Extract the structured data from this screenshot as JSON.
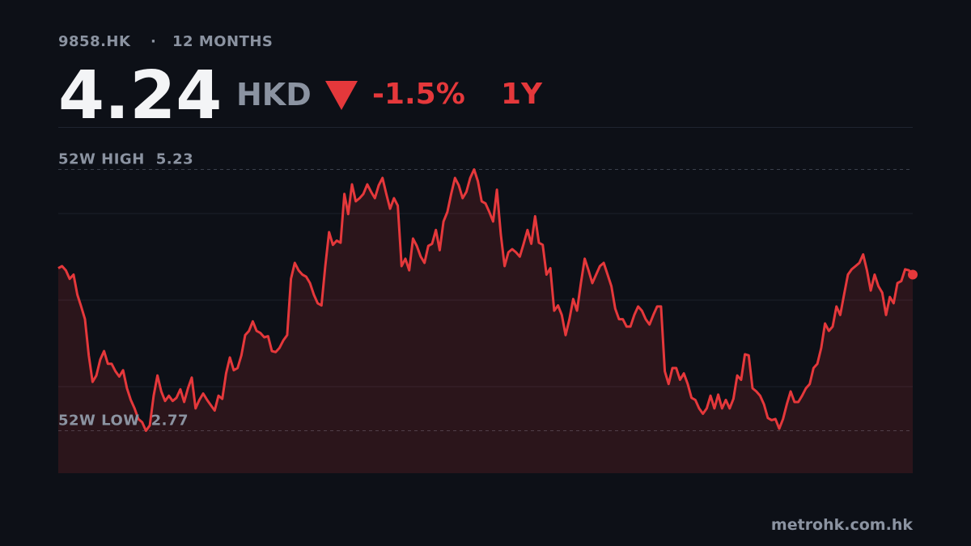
{
  "chart_data": {
    "type": "line",
    "symbol": "9858.HK",
    "separator": "·",
    "period": "12 MONTHS",
    "price": 4.24,
    "currency": "HKD",
    "change": "-1.5%",
    "range": "1Y",
    "high": {
      "label": "52W HIGH",
      "value": 5.23
    },
    "low": {
      "label": "52W LOW",
      "value": 2.77
    },
    "source": "metrohk.com.hk",
    "color": "#e5383b",
    "ylim": [
      2.37,
      5.63
    ],
    "values": [
      4.3,
      4.32,
      4.28,
      4.2,
      4.24,
      4.05,
      3.94,
      3.82,
      3.48,
      3.23,
      3.29,
      3.44,
      3.52,
      3.4,
      3.4,
      3.33,
      3.28,
      3.34,
      3.17,
      3.06,
      2.98,
      2.88,
      2.85,
      2.77,
      2.82,
      3.1,
      3.29,
      3.14,
      3.05,
      3.1,
      3.05,
      3.08,
      3.16,
      3.04,
      3.17,
      3.27,
      2.98,
      3.06,
      3.12,
      3.06,
      3.01,
      2.96,
      3.1,
      3.07,
      3.31,
      3.46,
      3.34,
      3.36,
      3.48,
      3.67,
      3.71,
      3.8,
      3.71,
      3.69,
      3.65,
      3.66,
      3.52,
      3.51,
      3.55,
      3.62,
      3.67,
      4.2,
      4.35,
      4.28,
      4.24,
      4.22,
      4.16,
      4.05,
      3.97,
      3.95,
      4.32,
      4.64,
      4.52,
      4.56,
      4.54,
      5.0,
      4.81,
      5.09,
      4.93,
      4.96,
      5.0,
      5.09,
      5.02,
      4.96,
      5.08,
      5.15,
      5.0,
      4.86,
      4.96,
      4.89,
      4.32,
      4.39,
      4.28,
      4.58,
      4.51,
      4.41,
      4.35,
      4.51,
      4.53,
      4.66,
      4.47,
      4.74,
      4.83,
      5.0,
      5.15,
      5.08,
      4.96,
      5.02,
      5.15,
      5.23,
      5.12,
      4.93,
      4.91,
      4.83,
      4.74,
      5.04,
      4.62,
      4.32,
      4.45,
      4.48,
      4.45,
      4.41,
      4.53,
      4.66,
      4.53,
      4.79,
      4.54,
      4.52,
      4.24,
      4.3,
      3.9,
      3.95,
      3.86,
      3.67,
      3.82,
      4.01,
      3.9,
      4.16,
      4.39,
      4.28,
      4.16,
      4.24,
      4.32,
      4.35,
      4.24,
      4.13,
      3.92,
      3.82,
      3.82,
      3.75,
      3.75,
      3.86,
      3.94,
      3.9,
      3.82,
      3.77,
      3.86,
      3.94,
      3.94,
      3.33,
      3.21,
      3.36,
      3.36,
      3.25,
      3.31,
      3.21,
      3.08,
      3.06,
      2.98,
      2.93,
      2.98,
      3.1,
      2.98,
      3.11,
      2.98,
      3.06,
      2.98,
      3.07,
      3.29,
      3.25,
      3.49,
      3.48,
      3.17,
      3.14,
      3.1,
      3.02,
      2.89,
      2.87,
      2.88,
      2.79,
      2.88,
      3.02,
      3.14,
      3.04,
      3.04,
      3.1,
      3.17,
      3.21,
      3.36,
      3.4,
      3.55,
      3.78,
      3.71,
      3.75,
      3.94,
      3.86,
      4.05,
      4.24,
      4.29,
      4.32,
      4.35,
      4.43,
      4.28,
      4.09,
      4.24,
      4.13,
      4.07,
      3.86,
      4.03,
      3.97,
      4.16,
      4.18,
      4.29,
      4.28,
      4.24
    ]
  }
}
